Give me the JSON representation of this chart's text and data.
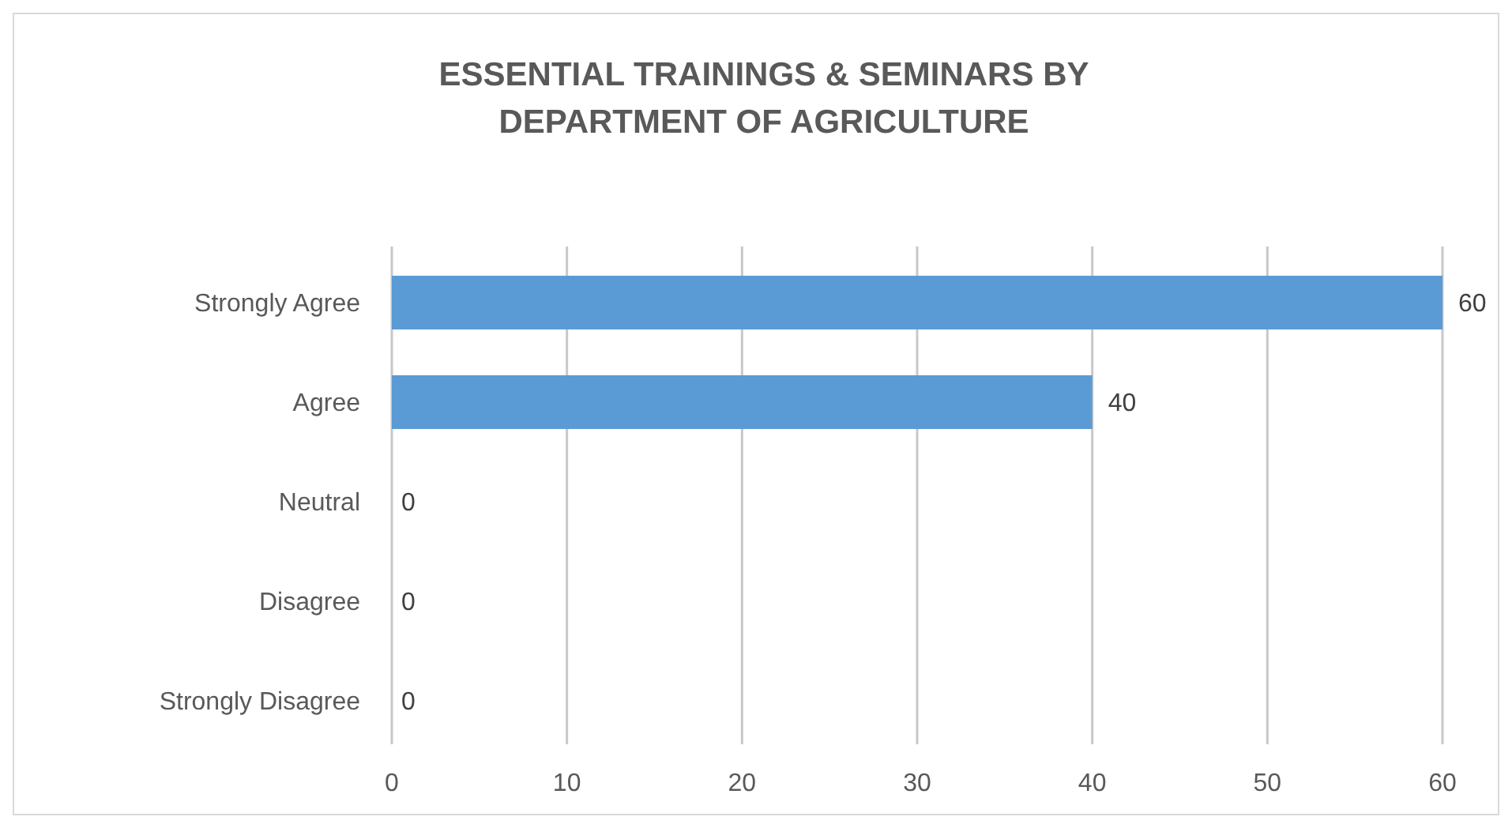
{
  "chart_data": {
    "type": "bar",
    "orientation": "horizontal",
    "title": "ESSENTIAL TRAININGS & SEMINARS BY DEPARTMENT OF AGRICULTURE",
    "categories": [
      "Strongly Agree",
      "Agree",
      "Neutral",
      "Disagree",
      "Strongly Disagree"
    ],
    "values": [
      60,
      40,
      0,
      0,
      0
    ],
    "color": "#5b9bd5",
    "xlim": [
      0,
      60
    ],
    "xticks": [
      0,
      10,
      20,
      30,
      40,
      50,
      60
    ],
    "grid": "x",
    "data_labels": true
  }
}
